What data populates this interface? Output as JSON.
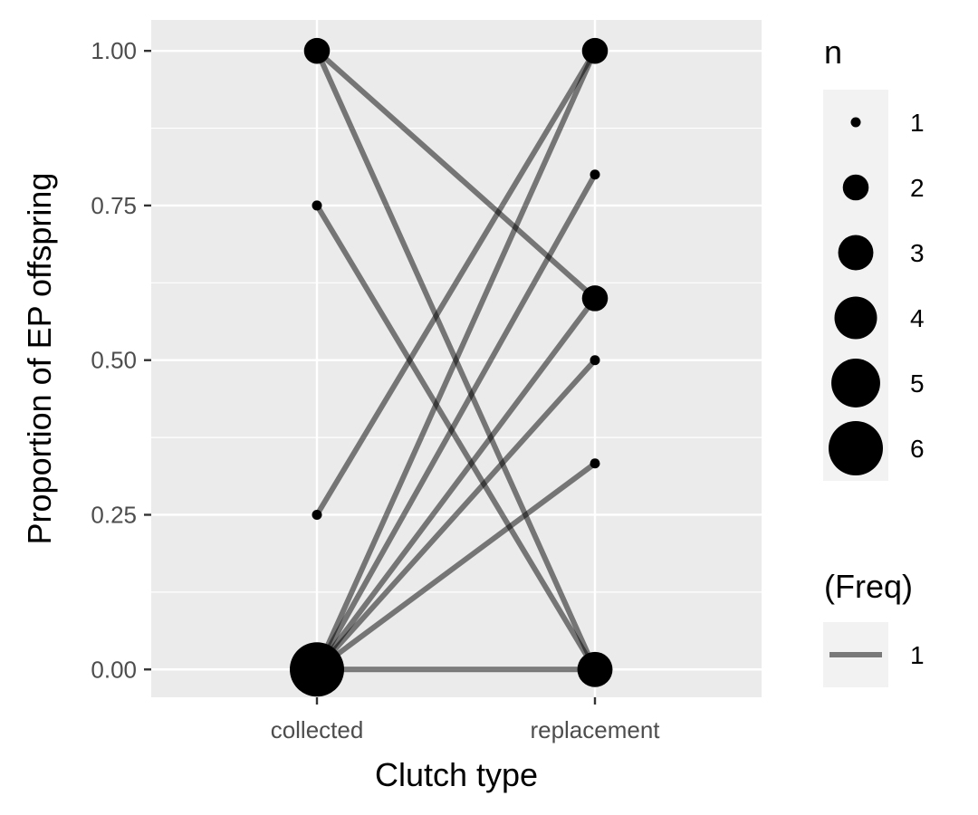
{
  "chart_data": {
    "type": "scatter",
    "title": "",
    "xlabel": "Clutch type",
    "ylabel": "Proportion of EP offspring",
    "categories": [
      "collected",
      "replacement"
    ],
    "ylim": [
      -0.045,
      1.05
    ],
    "yticks": [
      0,
      0.25,
      0.5,
      0.75,
      1
    ],
    "ytick_labels": [
      "0.00",
      "0.25",
      "0.50",
      "0.75",
      "1.00"
    ],
    "grid": true,
    "legend_position": "right",
    "points": [
      {
        "x": "collected",
        "y": 1.0,
        "n": 2
      },
      {
        "x": "collected",
        "y": 0.75,
        "n": 1
      },
      {
        "x": "collected",
        "y": 0.25,
        "n": 1
      },
      {
        "x": "collected",
        "y": 0.0,
        "n": 6
      },
      {
        "x": "replacement",
        "y": 1.0,
        "n": 2
      },
      {
        "x": "replacement",
        "y": 0.8,
        "n": 1
      },
      {
        "x": "replacement",
        "y": 0.6,
        "n": 2
      },
      {
        "x": "replacement",
        "y": 0.5,
        "n": 1
      },
      {
        "x": "replacement",
        "y": 0.333,
        "n": 1
      },
      {
        "x": "replacement",
        "y": 0.0,
        "n": 3
      }
    ],
    "pairs": [
      {
        "from": 1.0,
        "to": 0.6,
        "freq": 1
      },
      {
        "from": 1.0,
        "to": 0.0,
        "freq": 1
      },
      {
        "from": 0.75,
        "to": 0.0,
        "freq": 1
      },
      {
        "from": 0.25,
        "to": 1.0,
        "freq": 1
      },
      {
        "from": 0.0,
        "to": 1.0,
        "freq": 1
      },
      {
        "from": 0.0,
        "to": 0.8,
        "freq": 1
      },
      {
        "from": 0.0,
        "to": 0.6,
        "freq": 1
      },
      {
        "from": 0.0,
        "to": 0.5,
        "freq": 1
      },
      {
        "from": 0.0,
        "to": 0.333,
        "freq": 1
      },
      {
        "from": 0.0,
        "to": 0.0,
        "freq": 1
      }
    ],
    "legend": {
      "size_title": "n",
      "size_levels": [
        "1",
        "2",
        "3",
        "4",
        "5",
        "6"
      ],
      "line_title": "(Freq)",
      "line_levels": [
        "1"
      ]
    },
    "colors": {
      "panel": "#ebebeb",
      "grid": "#ffffff",
      "point": "#000000",
      "line": "#000000",
      "line_alpha": 0.5,
      "legend_key_bg": "#f2f2f2"
    }
  }
}
